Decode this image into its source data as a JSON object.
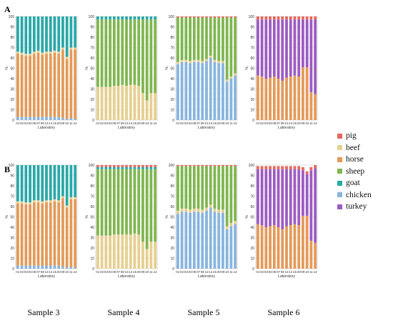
{
  "row_labels": [
    "A",
    "B"
  ],
  "sample_labels": [
    "Sample 3",
    "Sample 4",
    "Sample 5",
    "Sample 6"
  ],
  "colors": {
    "pig": "#e8665c",
    "beef": "#e6cf91",
    "horse": "#e39a58",
    "sheep": "#7fb650",
    "goat": "#2aa8a8",
    "chicken": "#88b4de",
    "turkey": "#9b5cc2"
  },
  "legend": [
    {
      "key": "pig",
      "label": "pig"
    },
    {
      "key": "beef",
      "label": "beef"
    },
    {
      "key": "horse",
      "label": "horse"
    },
    {
      "key": "sheep",
      "label": "sheep"
    },
    {
      "key": "goat",
      "label": "goat"
    },
    {
      "key": "chicken",
      "label": "chicken"
    },
    {
      "key": "turkey",
      "label": "turkey"
    }
  ],
  "chart_data": [
    {
      "type": "bar",
      "stacked": true,
      "row": "A",
      "sample": "Sample 3",
      "categories": [
        "01",
        "02",
        "03",
        "04",
        "06",
        "07",
        "08",
        "13",
        "14",
        "15",
        "20",
        "09",
        "10",
        "11",
        "12"
      ],
      "xlabel": "Laboratory",
      "ylabel": "%",
      "ylim": [
        0,
        100
      ],
      "yticks": [
        0,
        10,
        20,
        30,
        40,
        50,
        60,
        70,
        80,
        90,
        100
      ],
      "series": [
        {
          "name": "chicken",
          "values": [
            3,
            3,
            3,
            3,
            3,
            3,
            3,
            3,
            3,
            3,
            3,
            2,
            1,
            2,
            1
          ]
        },
        {
          "name": "horse",
          "values": [
            61,
            60,
            59,
            59,
            61,
            62,
            60,
            61,
            61,
            62,
            61,
            66,
            58,
            66,
            67
          ]
        },
        {
          "name": "beef",
          "values": [
            2,
            2,
            2,
            2,
            2,
            2,
            2,
            2,
            2,
            2,
            2,
            2,
            2,
            2,
            2
          ]
        },
        {
          "name": "goat",
          "values": [
            34,
            35,
            36,
            36,
            34,
            33,
            35,
            34,
            34,
            33,
            34,
            30,
            39,
            30,
            30
          ]
        }
      ]
    },
    {
      "type": "bar",
      "stacked": true,
      "row": "A",
      "sample": "Sample 4",
      "categories": [
        "01",
        "02",
        "03",
        "04",
        "06",
        "07",
        "08",
        "13",
        "14",
        "15",
        "20",
        "09",
        "10",
        "11",
        "12"
      ],
      "xlabel": "Laboratory",
      "ylabel": "%",
      "ylim": [
        0,
        100
      ],
      "yticks": [
        0,
        10,
        20,
        30,
        40,
        50,
        60,
        70,
        80,
        90,
        100
      ],
      "series": [
        {
          "name": "beef",
          "values": [
            32,
            32,
            32,
            32,
            33,
            33,
            34,
            33,
            34,
            34,
            33,
            26,
            19,
            26,
            26
          ]
        },
        {
          "name": "sheep",
          "values": [
            65,
            65,
            65,
            65,
            64,
            64,
            63,
            64,
            63,
            63,
            64,
            71,
            78,
            71,
            71
          ]
        },
        {
          "name": "goat",
          "values": [
            3,
            3,
            3,
            3,
            3,
            3,
            3,
            3,
            3,
            3,
            3,
            3,
            3,
            3,
            3
          ]
        }
      ]
    },
    {
      "type": "bar",
      "stacked": true,
      "row": "A",
      "sample": "Sample 5",
      "categories": [
        "01",
        "02",
        "03",
        "04",
        "06",
        "07",
        "08",
        "13",
        "14",
        "15",
        "20",
        "09",
        "10",
        "11",
        "12"
      ],
      "xlabel": "Laboratory",
      "ylabel": "%",
      "ylim": [
        0,
        100
      ],
      "yticks": [
        0,
        10,
        20,
        30,
        40,
        50,
        60,
        70,
        80,
        90,
        100
      ],
      "series": [
        {
          "name": "chicken",
          "values": [
            54,
            56,
            56,
            55,
            56,
            56,
            55,
            57,
            60,
            56,
            55,
            55,
            37,
            40,
            43
          ]
        },
        {
          "name": "beef",
          "values": [
            2,
            2,
            2,
            2,
            2,
            2,
            2,
            2,
            2,
            2,
            2,
            2,
            2,
            2,
            2
          ]
        },
        {
          "name": "sheep",
          "values": [
            43,
            41,
            41,
            42,
            41,
            41,
            42,
            40,
            37,
            41,
            42,
            42,
            60,
            57,
            54
          ]
        },
        {
          "name": "pig",
          "values": [
            1,
            1,
            1,
            1,
            1,
            1,
            1,
            1,
            1,
            1,
            1,
            1,
            1,
            1,
            1
          ]
        }
      ]
    },
    {
      "type": "bar",
      "stacked": true,
      "row": "A",
      "sample": "Sample 6",
      "categories": [
        "01",
        "02",
        "03",
        "04",
        "06",
        "07",
        "08",
        "13",
        "14",
        "15",
        "20",
        "09",
        "10",
        "11",
        "12"
      ],
      "xlabel": "Laboratory",
      "ylabel": "%",
      "ylim": [
        0,
        100
      ],
      "yticks": [
        0,
        10,
        20,
        30,
        40,
        50,
        60,
        70,
        80,
        90,
        100
      ],
      "series": [
        {
          "name": "horse",
          "values": [
            43,
            42,
            40,
            41,
            42,
            40,
            38,
            41,
            42,
            43,
            42,
            51,
            51,
            27,
            25
          ]
        },
        {
          "name": "turkey",
          "values": [
            54,
            55,
            57,
            56,
            55,
            57,
            59,
            56,
            55,
            54,
            55,
            46,
            46,
            70,
            72
          ]
        },
        {
          "name": "pig",
          "values": [
            3,
            3,
            3,
            3,
            3,
            3,
            3,
            3,
            3,
            3,
            3,
            3,
            3,
            3,
            3
          ]
        }
      ]
    },
    {
      "type": "bar",
      "stacked": true,
      "row": "B",
      "sample": "Sample 3",
      "categories": [
        "01",
        "02",
        "03",
        "04",
        "06",
        "07",
        "08",
        "13",
        "14",
        "15",
        "20",
        "09",
        "10",
        "11",
        "12"
      ],
      "xlabel": "Laboratory",
      "ylabel": "%",
      "ylim": [
        0,
        100
      ],
      "yticks": [
        0,
        10,
        20,
        30,
        40,
        50,
        60,
        70,
        80,
        90,
        100
      ],
      "series": [
        {
          "name": "chicken",
          "values": [
            3,
            3,
            3,
            3,
            3,
            3,
            3,
            3,
            3,
            3,
            3,
            2,
            1,
            2,
            1
          ]
        },
        {
          "name": "horse",
          "values": [
            60,
            60,
            59,
            59,
            61,
            61,
            60,
            61,
            61,
            62,
            61,
            66,
            58,
            65,
            66
          ]
        },
        {
          "name": "beef",
          "values": [
            2,
            2,
            2,
            2,
            2,
            2,
            2,
            2,
            2,
            2,
            2,
            2,
            2,
            2,
            2
          ]
        },
        {
          "name": "goat",
          "values": [
            35,
            35,
            36,
            36,
            34,
            34,
            35,
            34,
            34,
            33,
            34,
            30,
            39,
            31,
            31
          ]
        }
      ]
    },
    {
      "type": "bar",
      "stacked": true,
      "row": "B",
      "sample": "Sample 4",
      "categories": [
        "01",
        "02",
        "03",
        "04",
        "06",
        "07",
        "08",
        "13",
        "14",
        "15",
        "20",
        "09",
        "10",
        "11",
        "12"
      ],
      "xlabel": "Laboratory",
      "ylabel": "%",
      "ylim": [
        0,
        100
      ],
      "yticks": [
        0,
        10,
        20,
        30,
        40,
        50,
        60,
        70,
        80,
        90,
        100
      ],
      "series": [
        {
          "name": "beef",
          "values": [
            32,
            32,
            32,
            32,
            33,
            33,
            33,
            33,
            33,
            34,
            33,
            26,
            19,
            26,
            26
          ]
        },
        {
          "name": "sheep",
          "values": [
            64,
            64,
            64,
            64,
            63,
            63,
            63,
            63,
            63,
            62,
            63,
            70,
            77,
            70,
            70
          ]
        },
        {
          "name": "goat",
          "values": [
            2,
            2,
            2,
            2,
            2,
            2,
            2,
            2,
            2,
            2,
            2,
            2,
            2,
            2,
            2
          ]
        },
        {
          "name": "pig",
          "values": [
            2,
            2,
            2,
            2,
            2,
            2,
            2,
            2,
            2,
            2,
            2,
            2,
            2,
            2,
            2
          ]
        }
      ]
    },
    {
      "type": "bar",
      "stacked": true,
      "row": "B",
      "sample": "Sample 5",
      "categories": [
        "01",
        "02",
        "03",
        "04",
        "06",
        "07",
        "08",
        "13",
        "14",
        "15",
        "20",
        "09",
        "10",
        "11",
        "12"
      ],
      "xlabel": "Laboratory",
      "ylabel": "%",
      "ylim": [
        0,
        100
      ],
      "yticks": [
        0,
        10,
        20,
        30,
        40,
        50,
        60,
        70,
        80,
        90,
        100
      ],
      "series": [
        {
          "name": "chicken",
          "values": [
            53,
            55,
            55,
            54,
            55,
            55,
            54,
            56,
            59,
            55,
            54,
            54,
            38,
            41,
            43
          ]
        },
        {
          "name": "beef",
          "values": [
            3,
            3,
            3,
            3,
            3,
            3,
            3,
            3,
            3,
            3,
            3,
            3,
            3,
            3,
            3
          ]
        },
        {
          "name": "sheep",
          "values": [
            43,
            41,
            41,
            42,
            41,
            41,
            42,
            40,
            37,
            41,
            42,
            42,
            58,
            55,
            53
          ]
        },
        {
          "name": "pig",
          "values": [
            1,
            1,
            1,
            1,
            1,
            1,
            1,
            1,
            1,
            1,
            1,
            1,
            1,
            1,
            1
          ]
        }
      ]
    },
    {
      "type": "bar",
      "stacked": true,
      "row": "B",
      "sample": "Sample 6",
      "categories": [
        "01",
        "02",
        "03",
        "04",
        "06",
        "07",
        "08",
        "13",
        "14",
        "15",
        "20",
        "09",
        "10",
        "11",
        "12"
      ],
      "xlabel": "Laboratory",
      "ylabel": "%",
      "ylim": [
        0,
        100
      ],
      "yticks": [
        0,
        10,
        20,
        30,
        40,
        50,
        60,
        70,
        80,
        90,
        100
      ],
      "series": [
        {
          "name": "horse",
          "values": [
            43,
            42,
            40,
            41,
            42,
            40,
            38,
            41,
            42,
            43,
            42,
            51,
            51,
            27,
            25
          ]
        },
        {
          "name": "turkey",
          "values": [
            53,
            54,
            56,
            55,
            54,
            56,
            58,
            55,
            54,
            53,
            54,
            44,
            40,
            68,
            72
          ]
        },
        {
          "name": "pig",
          "values": [
            3,
            3,
            3,
            3,
            3,
            3,
            3,
            3,
            3,
            3,
            3,
            3,
            3,
            3,
            3
          ]
        }
      ]
    }
  ]
}
